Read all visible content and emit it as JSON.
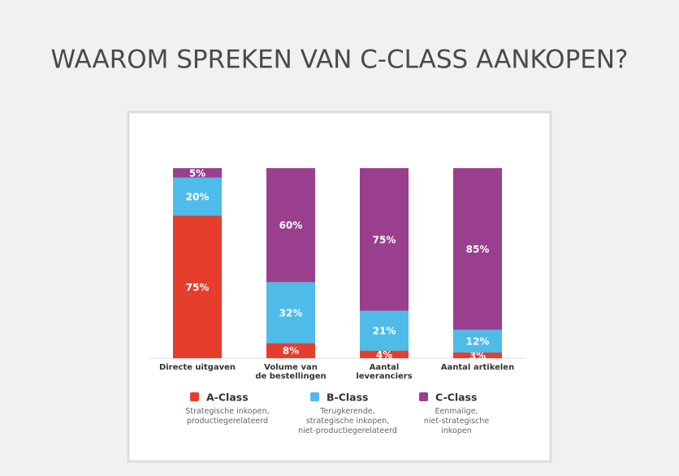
{
  "chart_data": {
    "type": "stacked-bar",
    "title": "WAAROM SPREKEN VAN C-CLASS AANKOPEN?",
    "categories": [
      "Directe uitgaven",
      "Volume van\nde bestellingen",
      "Aantal\nleveranciers",
      "Aantal artikelen"
    ],
    "ylim": [
      0,
      100
    ],
    "series": [
      {
        "name": "A-Class",
        "description": "Strategische inkopen,\nproductiegerelateerd",
        "color": "#e53e2d",
        "values": [
          75,
          8,
          4,
          3
        ],
        "value_labels": [
          "75%",
          "8%",
          "4%",
          "3%"
        ]
      },
      {
        "name": "B-Class",
        "description": "Terugkerende,\nstrategische inkopen,\nniet-productiegerelateerd",
        "color": "#4fbbe9",
        "values": [
          20,
          32,
          21,
          12
        ],
        "value_labels": [
          "20%",
          "32%",
          "21%",
          "12%"
        ]
      },
      {
        "name": "C-Class",
        "description": "Eenmalige,\nniet-strategische\ninkopen",
        "color": "#9a3f8e",
        "values": [
          5,
          60,
          75,
          85
        ],
        "value_labels": [
          "5%",
          "60%",
          "75%",
          "85%"
        ]
      }
    ]
  }
}
